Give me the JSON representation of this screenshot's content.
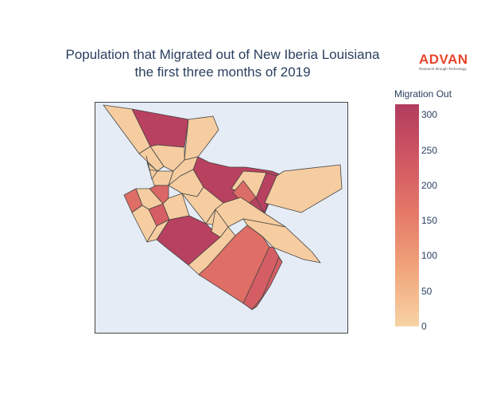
{
  "title": {
    "line1": "Population that Migrated out of New Iberia Louisiana",
    "line2": "the first three months of 2019"
  },
  "logo": {
    "name": "ADVAN",
    "tagline": "Research through Technology",
    "color": "#e8442a"
  },
  "colorbar": {
    "title": "Migration Out",
    "min": 0,
    "max": 315,
    "ticks": [
      {
        "label": "300",
        "value": 300
      },
      {
        "label": "250",
        "value": 250
      },
      {
        "label": "200",
        "value": 200
      },
      {
        "label": "150",
        "value": 150
      },
      {
        "label": "100",
        "value": 100
      },
      {
        "label": "50",
        "value": 50
      },
      {
        "label": "0",
        "value": 0
      }
    ],
    "colors": [
      "#f7d3a5",
      "#f1a67c",
      "#e57a68",
      "#d05762",
      "#b23c5e"
    ]
  },
  "map": {
    "background": "#e5ecf6",
    "border": "#444444"
  },
  "chart_data": {
    "type": "choropleth",
    "title": "Population that Migrated out of New Iberia Louisiana the first three months of 2019",
    "colorbar_title": "Migration Out",
    "range": [
      0,
      315
    ],
    "regions": [
      {
        "value": 10
      },
      {
        "value": 300
      },
      {
        "value": 10
      },
      {
        "value": 10
      },
      {
        "value": 10
      },
      {
        "value": 10
      },
      {
        "value": 10
      },
      {
        "value": 300
      },
      {
        "value": 10
      },
      {
        "value": 300
      },
      {
        "value": 190
      },
      {
        "value": 10
      },
      {
        "value": 10
      },
      {
        "value": 10
      },
      {
        "value": 10
      },
      {
        "value": 200
      },
      {
        "value": 10
      },
      {
        "value": 185
      },
      {
        "value": 220
      },
      {
        "value": 10
      },
      {
        "value": 300
      },
      {
        "value": 10
      },
      {
        "value": 10
      },
      {
        "value": 10
      },
      {
        "value": 10
      },
      {
        "value": 185
      },
      {
        "value": 220
      },
      {
        "value": 220
      },
      {
        "value": 10
      },
      {
        "value": 10
      }
    ]
  }
}
